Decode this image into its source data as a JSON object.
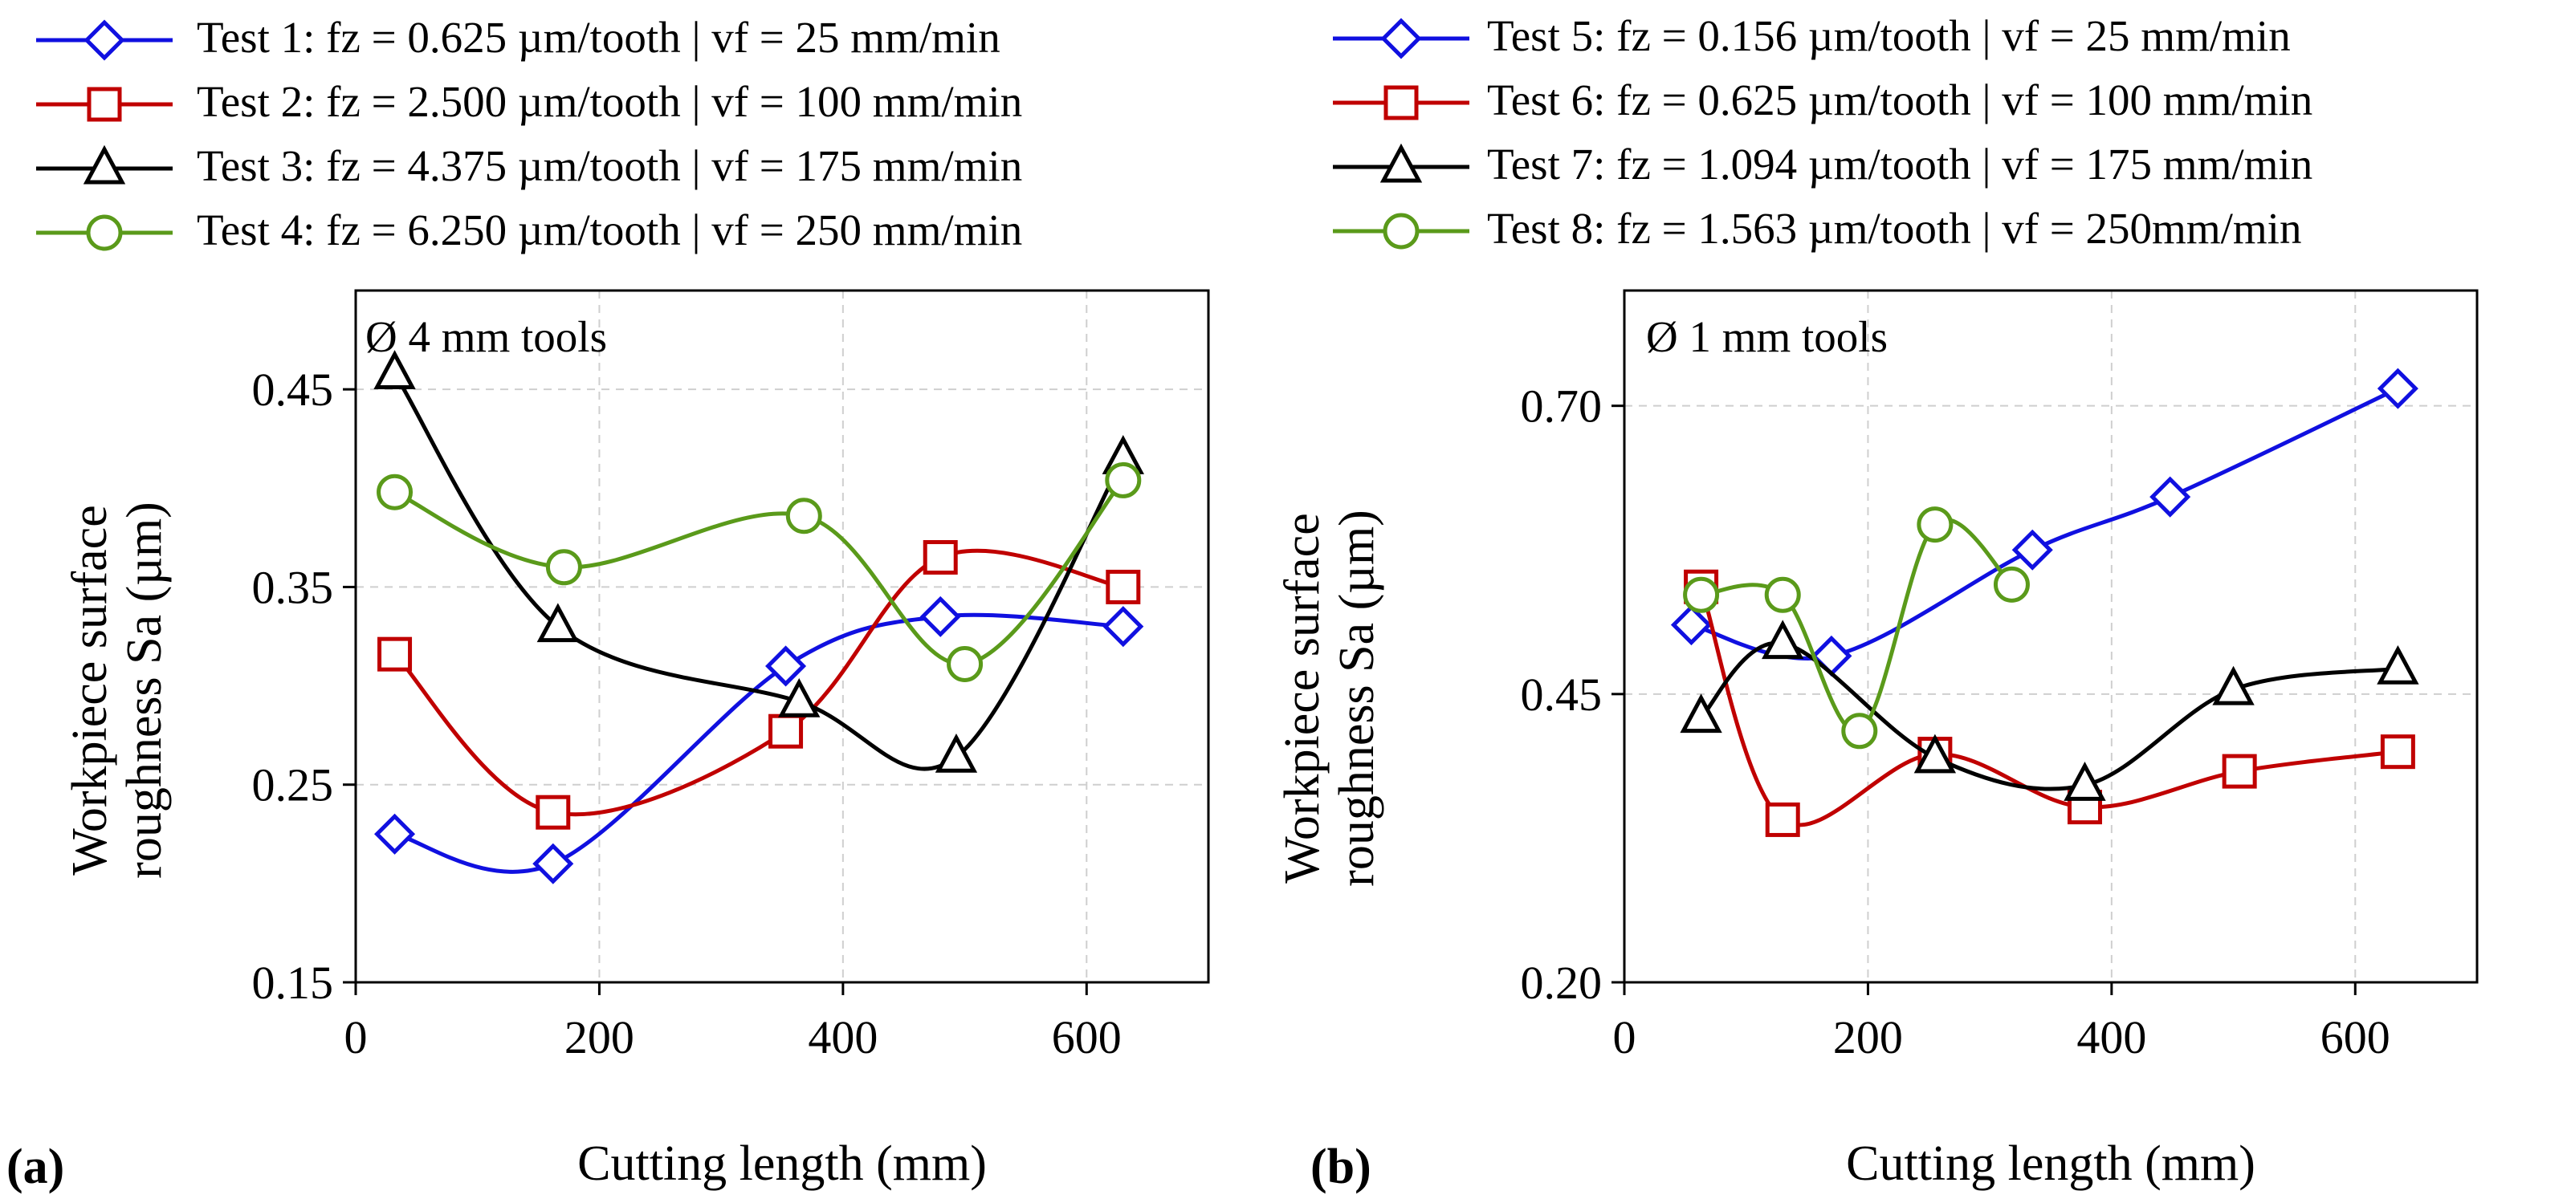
{
  "colors": {
    "blue": "#1010e0",
    "red": "#c00000",
    "black": "#000000",
    "green": "#5a9a1a",
    "grid": "#cfcfcf",
    "axis": "#000000"
  },
  "legend_a": [
    {
      "label": "Test 1: fz = 0.625 µm/tooth  |  vf = 25 mm/min",
      "color": "blue",
      "marker": "diamond"
    },
    {
      "label": "Test 2: fz = 2.500 µm/tooth  |  vf = 100 mm/min",
      "color": "red",
      "marker": "square"
    },
    {
      "label": "Test 3: fz = 4.375 µm/tooth  |  vf = 175 mm/min",
      "color": "black",
      "marker": "triangle"
    },
    {
      "label": "Test 4: fz = 6.250 µm/tooth  |  vf = 250 mm/min",
      "color": "green",
      "marker": "circle"
    }
  ],
  "legend_b": [
    {
      "label": "Test 5: fz = 0.156 µm/tooth  |  vf = 25 mm/min",
      "color": "blue",
      "marker": "diamond"
    },
    {
      "label": "Test 6: fz = 0.625 µm/tooth  |  vf = 100 mm/min",
      "color": "red",
      "marker": "square"
    },
    {
      "label": "Test 7: fz = 1.094 µm/tooth  |  vf = 175 mm/min",
      "color": "black",
      "marker": "triangle"
    },
    {
      "label": "Test 8: fz = 1.563 µm/tooth  |  vf = 250mm/min",
      "color": "green",
      "marker": "circle"
    }
  ],
  "chart_data": [
    {
      "type": "line",
      "panel_label": "(a)",
      "annotation": "Ø 4 mm tools",
      "xlabel": "Cutting length (mm)",
      "ylabel_line1": "Workpiece surface",
      "ylabel_line2": "roughness Sa (µm)",
      "xlim": [
        0,
        700
      ],
      "ylim": [
        0.15,
        0.5
      ],
      "xticks": [
        0,
        200,
        400,
        600
      ],
      "xtick_labels": [
        "0",
        "200",
        "400",
        "600"
      ],
      "yticks": [
        0.15,
        0.25,
        0.35,
        0.45
      ],
      "ytick_labels": [
        "0.15",
        "0.25",
        "0.35",
        "0.45"
      ],
      "series": [
        {
          "name": "Test 1",
          "color": "blue",
          "marker": "diamond",
          "x": [
            32,
            162,
            353,
            480,
            630
          ],
          "y": [
            0.225,
            0.21,
            0.31,
            0.335,
            0.33
          ]
        },
        {
          "name": "Test 2",
          "color": "red",
          "marker": "square",
          "x": [
            32,
            162,
            353,
            480,
            630
          ],
          "y": [
            0.316,
            0.236,
            0.277,
            0.365,
            0.35
          ]
        },
        {
          "name": "Test 3",
          "color": "black",
          "marker": "triangle",
          "x": [
            32,
            166,
            364,
            493,
            630
          ],
          "y": [
            0.458,
            0.33,
            0.292,
            0.264,
            0.415
          ]
        },
        {
          "name": "Test 4",
          "color": "green",
          "marker": "circle",
          "x": [
            32,
            171,
            368,
            500,
            630
          ],
          "y": [
            0.398,
            0.36,
            0.386,
            0.311,
            0.404
          ]
        }
      ]
    },
    {
      "type": "line",
      "panel_label": "(b)",
      "annotation": "Ø 1 mm tools",
      "xlabel": "Cutting length (mm)",
      "ylabel_line1": "Workpiece surface",
      "ylabel_line2": "roughness Sa (µm)",
      "xlim": [
        0,
        700
      ],
      "ylim": [
        0.2,
        0.8
      ],
      "xticks": [
        0,
        200,
        400,
        600
      ],
      "xtick_labels": [
        "0",
        "200",
        "400",
        "600"
      ],
      "yticks": [
        0.2,
        0.45,
        0.7
      ],
      "ytick_labels": [
        "0.20",
        "0.45",
        "0.70"
      ],
      "series": [
        {
          "name": "Test 5",
          "color": "blue",
          "marker": "diamond",
          "x": [
            55,
            170,
            335,
            448,
            635
          ],
          "y": [
            0.51,
            0.483,
            0.575,
            0.621,
            0.715
          ]
        },
        {
          "name": "Test 6",
          "color": "red",
          "marker": "square",
          "x": [
            63,
            130,
            255,
            378,
            505,
            635
          ],
          "y": [
            0.543,
            0.341,
            0.398,
            0.352,
            0.383,
            0.4
          ]
        },
        {
          "name": "Test 7",
          "color": "black",
          "marker": "triangle",
          "x": [
            63,
            130,
            255,
            378,
            500,
            635
          ],
          "y": [
            0.43,
            0.494,
            0.395,
            0.371,
            0.454,
            0.472
          ]
        },
        {
          "name": "Test 8",
          "color": "green",
          "marker": "circle",
          "x": [
            63,
            130,
            193,
            255,
            318
          ],
          "y": [
            0.536,
            0.536,
            0.418,
            0.597,
            0.545
          ]
        }
      ]
    }
  ]
}
